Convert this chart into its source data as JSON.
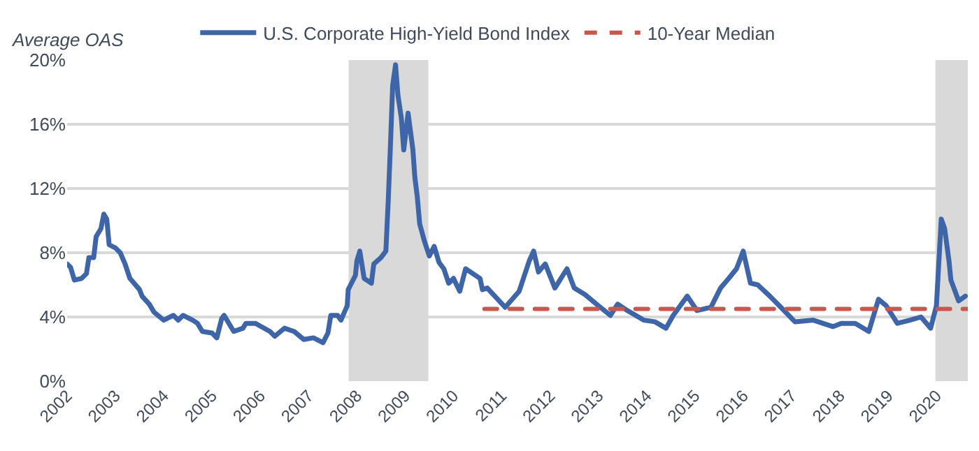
{
  "chart_data": {
    "type": "line",
    "ylabel": "Average OAS",
    "xlim": [
      2002,
      2020.65
    ],
    "xticks": [
      2002,
      2003,
      2004,
      2005,
      2006,
      2007,
      2008,
      2009,
      2010,
      2011,
      2012,
      2013,
      2014,
      2015,
      2016,
      2017,
      2018,
      2019,
      2020
    ],
    "ylim": [
      0,
      20
    ],
    "yticks": [
      {
        "value": 0,
        "label": "0%"
      },
      {
        "value": 4,
        "label": "4%"
      },
      {
        "value": 8,
        "label": "8%"
      },
      {
        "value": 12,
        "label": "12%"
      },
      {
        "value": 16,
        "label": "16%"
      },
      {
        "value": 20,
        "label": "20%"
      }
    ],
    "grid": "y",
    "legend": "top",
    "marker": "none",
    "bands": [
      {
        "axis": "x",
        "from": 2007.83,
        "to": 2009.48,
        "color": "#d9d9d9"
      },
      {
        "axis": "x",
        "from": 2019.98,
        "to": 2020.65,
        "color": "#d9d9d9"
      }
    ],
    "series": [
      {
        "name": "U.S. Corporate High-Yield Bond Index",
        "color": "#3d65a8",
        "line_style": "solid",
        "x": [
          2002.0,
          2002.07,
          2002.15,
          2002.3,
          2002.4,
          2002.45,
          2002.55,
          2002.6,
          2002.7,
          2002.76,
          2002.82,
          2002.87,
          2003.0,
          2003.1,
          2003.2,
          2003.3,
          2003.5,
          2003.55,
          2003.7,
          2003.8,
          2004.0,
          2004.2,
          2004.3,
          2004.4,
          2004.6,
          2004.7,
          2004.8,
          2005.0,
          2005.1,
          2005.2,
          2005.25,
          2005.35,
          2005.45,
          2005.64,
          2005.7,
          2005.9,
          2006.2,
          2006.3,
          2006.5,
          2006.7,
          2006.9,
          2007.1,
          2007.3,
          2007.4,
          2007.46,
          2007.6,
          2007.67,
          2007.8,
          2007.82,
          2007.87,
          2007.97,
          2008.0,
          2008.06,
          2008.15,
          2008.3,
          2008.35,
          2008.5,
          2008.6,
          2008.65,
          2008.7,
          2008.74,
          2008.8,
          2008.85,
          2008.92,
          2008.97,
          2009.06,
          2009.16,
          2009.2,
          2009.25,
          2009.3,
          2009.4,
          2009.5,
          2009.6,
          2009.7,
          2009.8,
          2009.9,
          2010.0,
          2010.13,
          2010.25,
          2010.4,
          2010.55,
          2010.6,
          2010.7,
          2011.07,
          2011.36,
          2011.57,
          2011.66,
          2011.76,
          2011.9,
          2012.1,
          2012.35,
          2012.5,
          2012.72,
          2013.0,
          2013.25,
          2013.4,
          2013.6,
          2013.94,
          2014.17,
          2014.4,
          2014.55,
          2014.84,
          2015.04,
          2015.33,
          2015.53,
          2015.7,
          2015.86,
          2016.0,
          2016.15,
          2016.3,
          2016.55,
          2016.78,
          2017.07,
          2017.45,
          2017.86,
          2018.03,
          2018.32,
          2018.6,
          2018.8,
          2018.96,
          2019.19,
          2019.45,
          2019.68,
          2019.88,
          2020.0,
          2020.1,
          2020.17,
          2020.26,
          2020.3,
          2020.46,
          2020.6
        ],
        "values": [
          7.3,
          7.1,
          6.3,
          6.4,
          6.7,
          7.7,
          7.7,
          9.0,
          9.5,
          10.4,
          10.1,
          8.5,
          8.3,
          8.0,
          7.3,
          6.4,
          5.7,
          5.3,
          4.8,
          4.3,
          3.8,
          4.1,
          3.8,
          4.1,
          3.8,
          3.6,
          3.1,
          3.0,
          2.7,
          3.9,
          4.1,
          3.6,
          3.1,
          3.3,
          3.6,
          3.6,
          3.1,
          2.8,
          3.3,
          3.1,
          2.6,
          2.7,
          2.4,
          3.0,
          4.1,
          4.1,
          3.8,
          4.7,
          5.7,
          6.0,
          6.6,
          7.5,
          8.1,
          6.4,
          6.1,
          7.3,
          7.7,
          8.1,
          11.3,
          15.1,
          18.4,
          19.7,
          17.8,
          16.4,
          14.4,
          16.7,
          14.4,
          12.7,
          11.5,
          9.8,
          8.7,
          7.8,
          8.4,
          7.4,
          7.0,
          6.1,
          6.4,
          5.6,
          7.0,
          6.7,
          6.4,
          5.7,
          5.8,
          4.6,
          5.6,
          7.5,
          8.1,
          6.8,
          7.3,
          5.8,
          7.0,
          5.8,
          5.4,
          4.7,
          4.1,
          4.8,
          4.4,
          3.8,
          3.7,
          3.3,
          4.1,
          5.3,
          4.4,
          4.6,
          5.8,
          6.4,
          7.0,
          8.1,
          6.1,
          6.0,
          5.3,
          4.6,
          3.7,
          3.8,
          3.4,
          3.6,
          3.6,
          3.1,
          5.1,
          4.7,
          3.6,
          3.8,
          4.0,
          3.3,
          4.7,
          10.1,
          9.5,
          7.5,
          6.3,
          5.0,
          5.3
        ]
      },
      {
        "name": "10-Year Median",
        "color": "#c9584c",
        "line_style": "dashed",
        "x": [
          2010.64,
          2020.65
        ],
        "values": [
          4.5,
          4.5
        ]
      }
    ]
  }
}
